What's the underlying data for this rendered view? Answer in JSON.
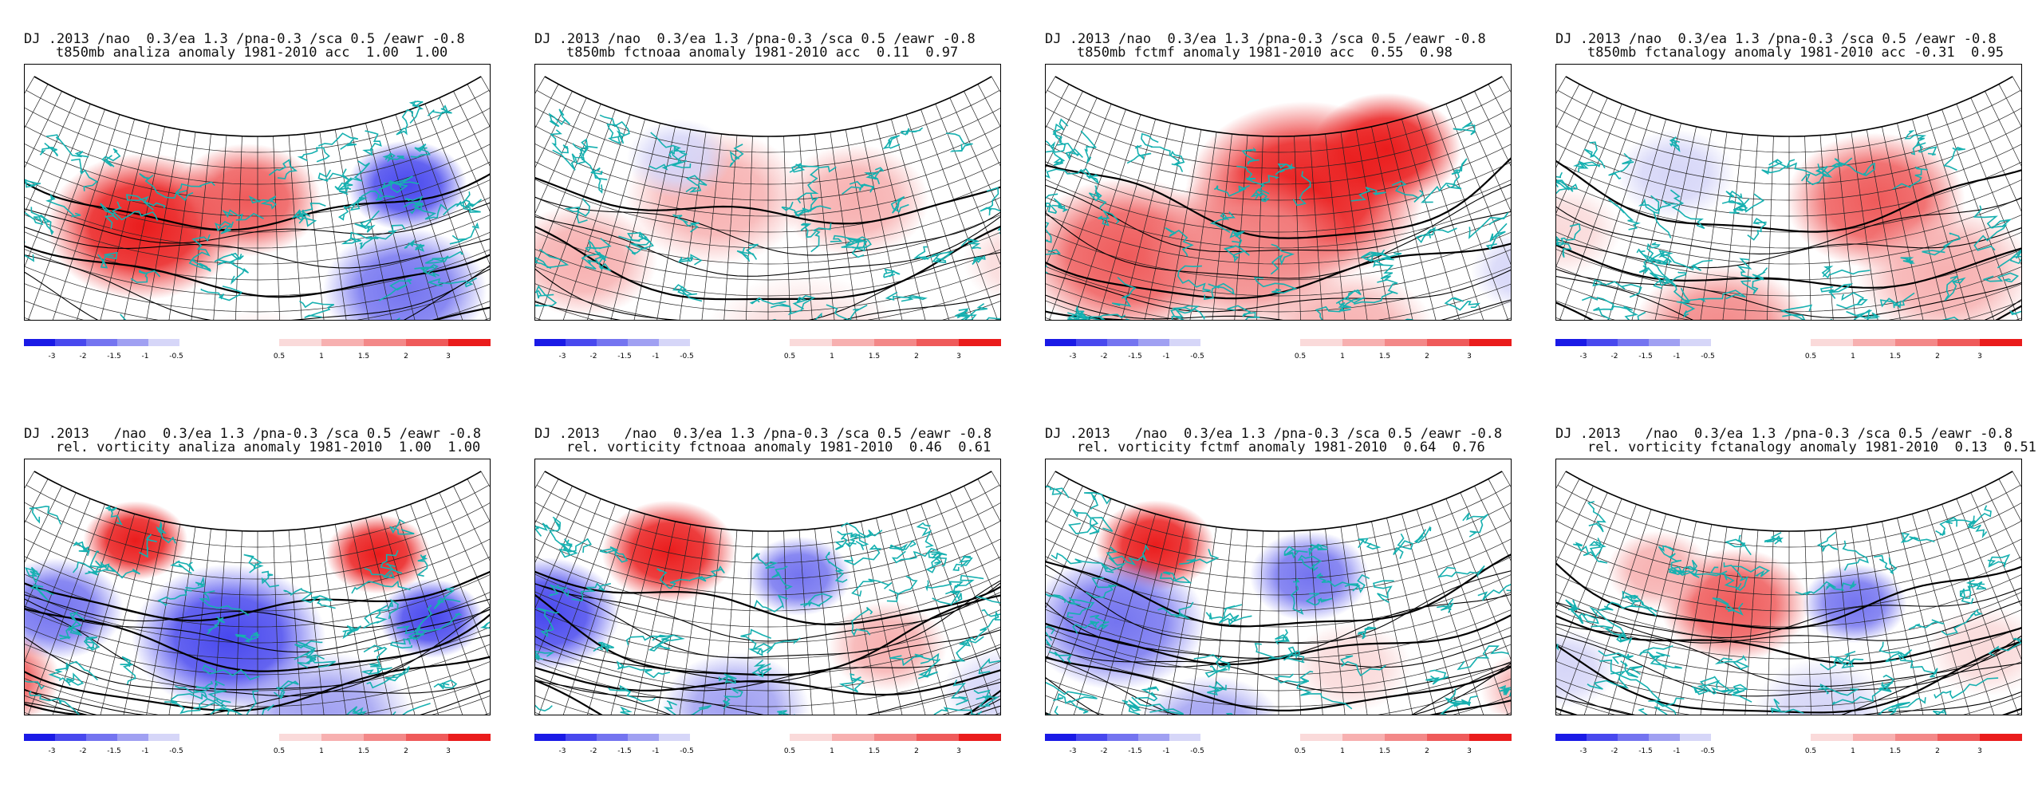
{
  "figure": {
    "colorbar": {
      "neg_colors": [
        "#1a1ae6",
        "#4848ee",
        "#7474f0",
        "#a0a0f2",
        "#d6d6f8"
      ],
      "pos_colors": [
        "#fadada",
        "#f7b0b0",
        "#f38888",
        "#ef5a5a",
        "#ea1c1c"
      ],
      "neg_labels": [
        "-3",
        "-2",
        "-1.5",
        "-1",
        "-0.5"
      ],
      "pos_labels": [
        "0.5",
        "1",
        "1.5",
        "2",
        "3"
      ]
    },
    "colors": {
      "land_contour": "#16b0b0",
      "isoline": "#000000",
      "grid": "#222222"
    }
  },
  "panels": [
    {
      "line1": "DJ .2013 /nao  0.3/ea 1.3 /pna-0.3 /sca 0.5 /eawr -0.8",
      "line2": "t850mb analiza anomaly 1981-2010 acc  1.00  1.00"
    },
    {
      "line1": "DJ .2013 /nao  0.3/ea 1.3 /pna-0.3 /sca 0.5 /eawr -0.8",
      "line2": "t850mb fctnoaa anomaly 1981-2010 acc  0.11  0.97"
    },
    {
      "line1": "DJ .2013 /nao  0.3/ea 1.3 /pna-0.3 /sca 0.5 /eawr -0.8",
      "line2": "t850mb fctmf anomaly 1981-2010 acc  0.55  0.98"
    },
    {
      "line1": "DJ .2013 /nao  0.3/ea 1.3 /pna-0.3 /sca 0.5 /eawr -0.8",
      "line2": "t850mb fctanalogy anomaly 1981-2010 acc -0.31  0.95"
    },
    {
      "line1": "DJ .2013   /nao  0.3/ea 1.3 /pna-0.3 /sca 0.5 /eawr -0.8",
      "line2": "rel. vorticity analiza anomaly 1981-2010  1.00  1.00"
    },
    {
      "line1": "DJ .2013   /nao  0.3/ea 1.3 /pna-0.3 /sca 0.5 /eawr -0.8",
      "line2": "rel. vorticity fctnoaa anomaly 1981-2010  0.46  0.61"
    },
    {
      "line1": "DJ .2013   /nao  0.3/ea 1.3 /pna-0.3 /sca 0.5 /eawr -0.8",
      "line2": "rel. vorticity fctmf anomaly 1981-2010  0.64  0.76"
    },
    {
      "line1": "DJ .2013   /nao  0.3/ea 1.3 /pna-0.3 /sca 0.5 /eawr -0.8",
      "line2": "rel. vorticity fctanalogy anomaly 1981-2010  0.13  0.51"
    }
  ],
  "chart_data": [
    {
      "type": "heatmap",
      "field": "t850mb",
      "source": "analiza",
      "anomaly_blobs": [
        {
          "u": 0.3,
          "v": 0.4,
          "value": 3,
          "spread": 0.13
        },
        {
          "u": 0.48,
          "v": 0.25,
          "value": 2,
          "spread": 0.1
        },
        {
          "u": 0.78,
          "v": 0.28,
          "value": -2,
          "spread": 0.08
        },
        {
          "u": 0.73,
          "v": 0.67,
          "value": -1.5,
          "spread": 0.11
        },
        {
          "u": 0.05,
          "v": 0.72,
          "value": -0.5,
          "spread": 0.07
        },
        {
          "u": 0.5,
          "v": 0.9,
          "value": 0.5,
          "spread": 0.1
        }
      ]
    },
    {
      "type": "heatmap",
      "field": "t850mb",
      "source": "fctnoaa",
      "anomaly_blobs": [
        {
          "u": 0.4,
          "v": 0.25,
          "value": 1,
          "spread": 0.12
        },
        {
          "u": 0.66,
          "v": 0.28,
          "value": 1,
          "spread": 0.1
        },
        {
          "u": 0.2,
          "v": 0.6,
          "value": 1,
          "spread": 0.1
        },
        {
          "u": 0.55,
          "v": 0.85,
          "value": 0.5,
          "spread": 0.14
        },
        {
          "u": 0.9,
          "v": 0.7,
          "value": 0.5,
          "spread": 0.08
        },
        {
          "u": 0.32,
          "v": 0.12,
          "value": -0.5,
          "spread": 0.07
        }
      ]
    },
    {
      "type": "heatmap",
      "field": "t850mb",
      "source": "fctmf",
      "anomaly_blobs": [
        {
          "u": 0.55,
          "v": 0.22,
          "value": 3,
          "spread": 0.16
        },
        {
          "u": 0.72,
          "v": 0.1,
          "value": 3,
          "spread": 0.1
        },
        {
          "u": 0.25,
          "v": 0.55,
          "value": 2,
          "spread": 0.14
        },
        {
          "u": 0.45,
          "v": 0.45,
          "value": 1.5,
          "spread": 0.14
        },
        {
          "u": 0.6,
          "v": 0.8,
          "value": 1,
          "spread": 0.12
        },
        {
          "u": 0.88,
          "v": 0.72,
          "value": -0.5,
          "spread": 0.07
        }
      ]
    },
    {
      "type": "heatmap",
      "field": "t850mb",
      "source": "fctanalogy",
      "anomaly_blobs": [
        {
          "u": 0.66,
          "v": 0.28,
          "value": 2,
          "spread": 0.12
        },
        {
          "u": 0.4,
          "v": 0.78,
          "value": 1.5,
          "spread": 0.12
        },
        {
          "u": 0.75,
          "v": 0.62,
          "value": 1,
          "spread": 0.12
        },
        {
          "u": 0.28,
          "v": 0.2,
          "value": -0.5,
          "spread": 0.08
        },
        {
          "u": 0.12,
          "v": 0.55,
          "value": 0.5,
          "spread": 0.08
        }
      ]
    },
    {
      "type": "heatmap",
      "field": "rel. vorticity",
      "source": "analiza",
      "anomaly_blobs": [
        {
          "u": 0.25,
          "v": 0.1,
          "value": 3,
          "spread": 0.07
        },
        {
          "u": 0.74,
          "v": 0.15,
          "value": 3,
          "spread": 0.07
        },
        {
          "u": 0.45,
          "v": 0.42,
          "value": -2,
          "spread": 0.13
        },
        {
          "u": 0.8,
          "v": 0.45,
          "value": -2,
          "spread": 0.07
        },
        {
          "u": 0.15,
          "v": 0.45,
          "value": -1.5,
          "spread": 0.09
        },
        {
          "u": 0.1,
          "v": 0.8,
          "value": 2,
          "spread": 0.09
        },
        {
          "u": 0.6,
          "v": 0.75,
          "value": -1,
          "spread": 0.12
        }
      ]
    },
    {
      "type": "heatmap",
      "field": "rel. vorticity",
      "source": "fctnoaa",
      "anomaly_blobs": [
        {
          "u": 0.3,
          "v": 0.12,
          "value": 3,
          "spread": 0.09
        },
        {
          "u": 0.56,
          "v": 0.18,
          "value": -1.5,
          "spread": 0.07
        },
        {
          "u": 0.12,
          "v": 0.5,
          "value": -2,
          "spread": 0.1
        },
        {
          "u": 0.45,
          "v": 0.7,
          "value": -1,
          "spread": 0.1
        },
        {
          "u": 0.7,
          "v": 0.5,
          "value": 1,
          "spread": 0.08
        },
        {
          "u": 0.85,
          "v": 0.8,
          "value": -0.5,
          "spread": 0.08
        }
      ]
    },
    {
      "type": "heatmap",
      "field": "rel. vorticity",
      "source": "fctmf",
      "anomaly_blobs": [
        {
          "u": 0.25,
          "v": 0.12,
          "value": 3,
          "spread": 0.08
        },
        {
          "u": 0.56,
          "v": 0.18,
          "value": -1.5,
          "spread": 0.08
        },
        {
          "u": 0.22,
          "v": 0.45,
          "value": -1.5,
          "spread": 0.12
        },
        {
          "u": 0.4,
          "v": 0.8,
          "value": -1,
          "spread": 0.1
        },
        {
          "u": 0.62,
          "v": 0.55,
          "value": 0.5,
          "spread": 0.08
        },
        {
          "u": 0.88,
          "v": 0.82,
          "value": 1,
          "spread": 0.07
        }
      ]
    },
    {
      "type": "heatmap",
      "field": "rel. vorticity",
      "source": "fctanalogy",
      "anomaly_blobs": [
        {
          "u": 0.4,
          "v": 0.3,
          "value": 2,
          "spread": 0.1
        },
        {
          "u": 0.25,
          "v": 0.22,
          "value": 1,
          "spread": 0.07
        },
        {
          "u": 0.62,
          "v": 0.3,
          "value": -1.5,
          "spread": 0.07
        },
        {
          "u": 0.55,
          "v": 0.7,
          "value": -0.5,
          "spread": 0.09
        },
        {
          "u": 0.82,
          "v": 0.6,
          "value": 0.5,
          "spread": 0.08
        },
        {
          "u": 0.55,
          "v": 0.95,
          "value": -2,
          "spread": 0.07
        },
        {
          "u": 0.15,
          "v": 0.7,
          "value": -0.5,
          "spread": 0.07
        }
      ]
    }
  ]
}
